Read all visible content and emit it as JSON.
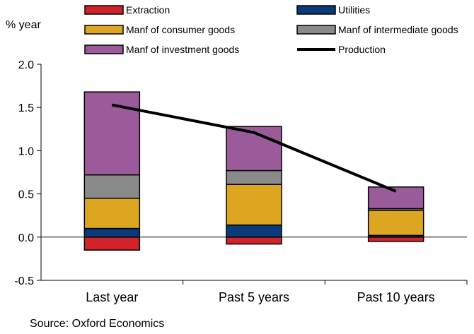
{
  "chart_data": {
    "type": "bar",
    "stacked": true,
    "categories": [
      "Last year",
      "Past 5 years",
      "Past 10 years"
    ],
    "ylabel": "% year",
    "ylim": [
      -0.5,
      2.0
    ],
    "yticks": [
      "-0.5",
      "0.0",
      "0.5",
      "1.0",
      "1.5",
      "2.0"
    ],
    "ytick_values": [
      -0.5,
      0.0,
      0.5,
      1.0,
      1.5,
      2.0
    ],
    "grid": false,
    "legend_position": "top",
    "series": [
      {
        "name": "Extraction",
        "color": "#d2232a",
        "values": [
          -0.15,
          -0.08,
          -0.05
        ]
      },
      {
        "name": "Utilities",
        "color": "#0b3a7a",
        "values": [
          0.1,
          0.14,
          0.02
        ]
      },
      {
        "name": "Manf of consumer goods",
        "color": "#dca620",
        "values": [
          0.35,
          0.47,
          0.29
        ]
      },
      {
        "name": "Manf of intermediate goods",
        "color": "#8a8a8a",
        "values": [
          0.27,
          0.16,
          0.02
        ]
      },
      {
        "name": "Manf of investment goods",
        "color": "#9b5b9b",
        "values": [
          0.96,
          0.51,
          0.25
        ]
      }
    ],
    "line_series": {
      "name": "Production",
      "color": "#000000",
      "values": [
        1.53,
        1.21,
        0.53
      ]
    },
    "source": "Source: Oxford Economics"
  }
}
